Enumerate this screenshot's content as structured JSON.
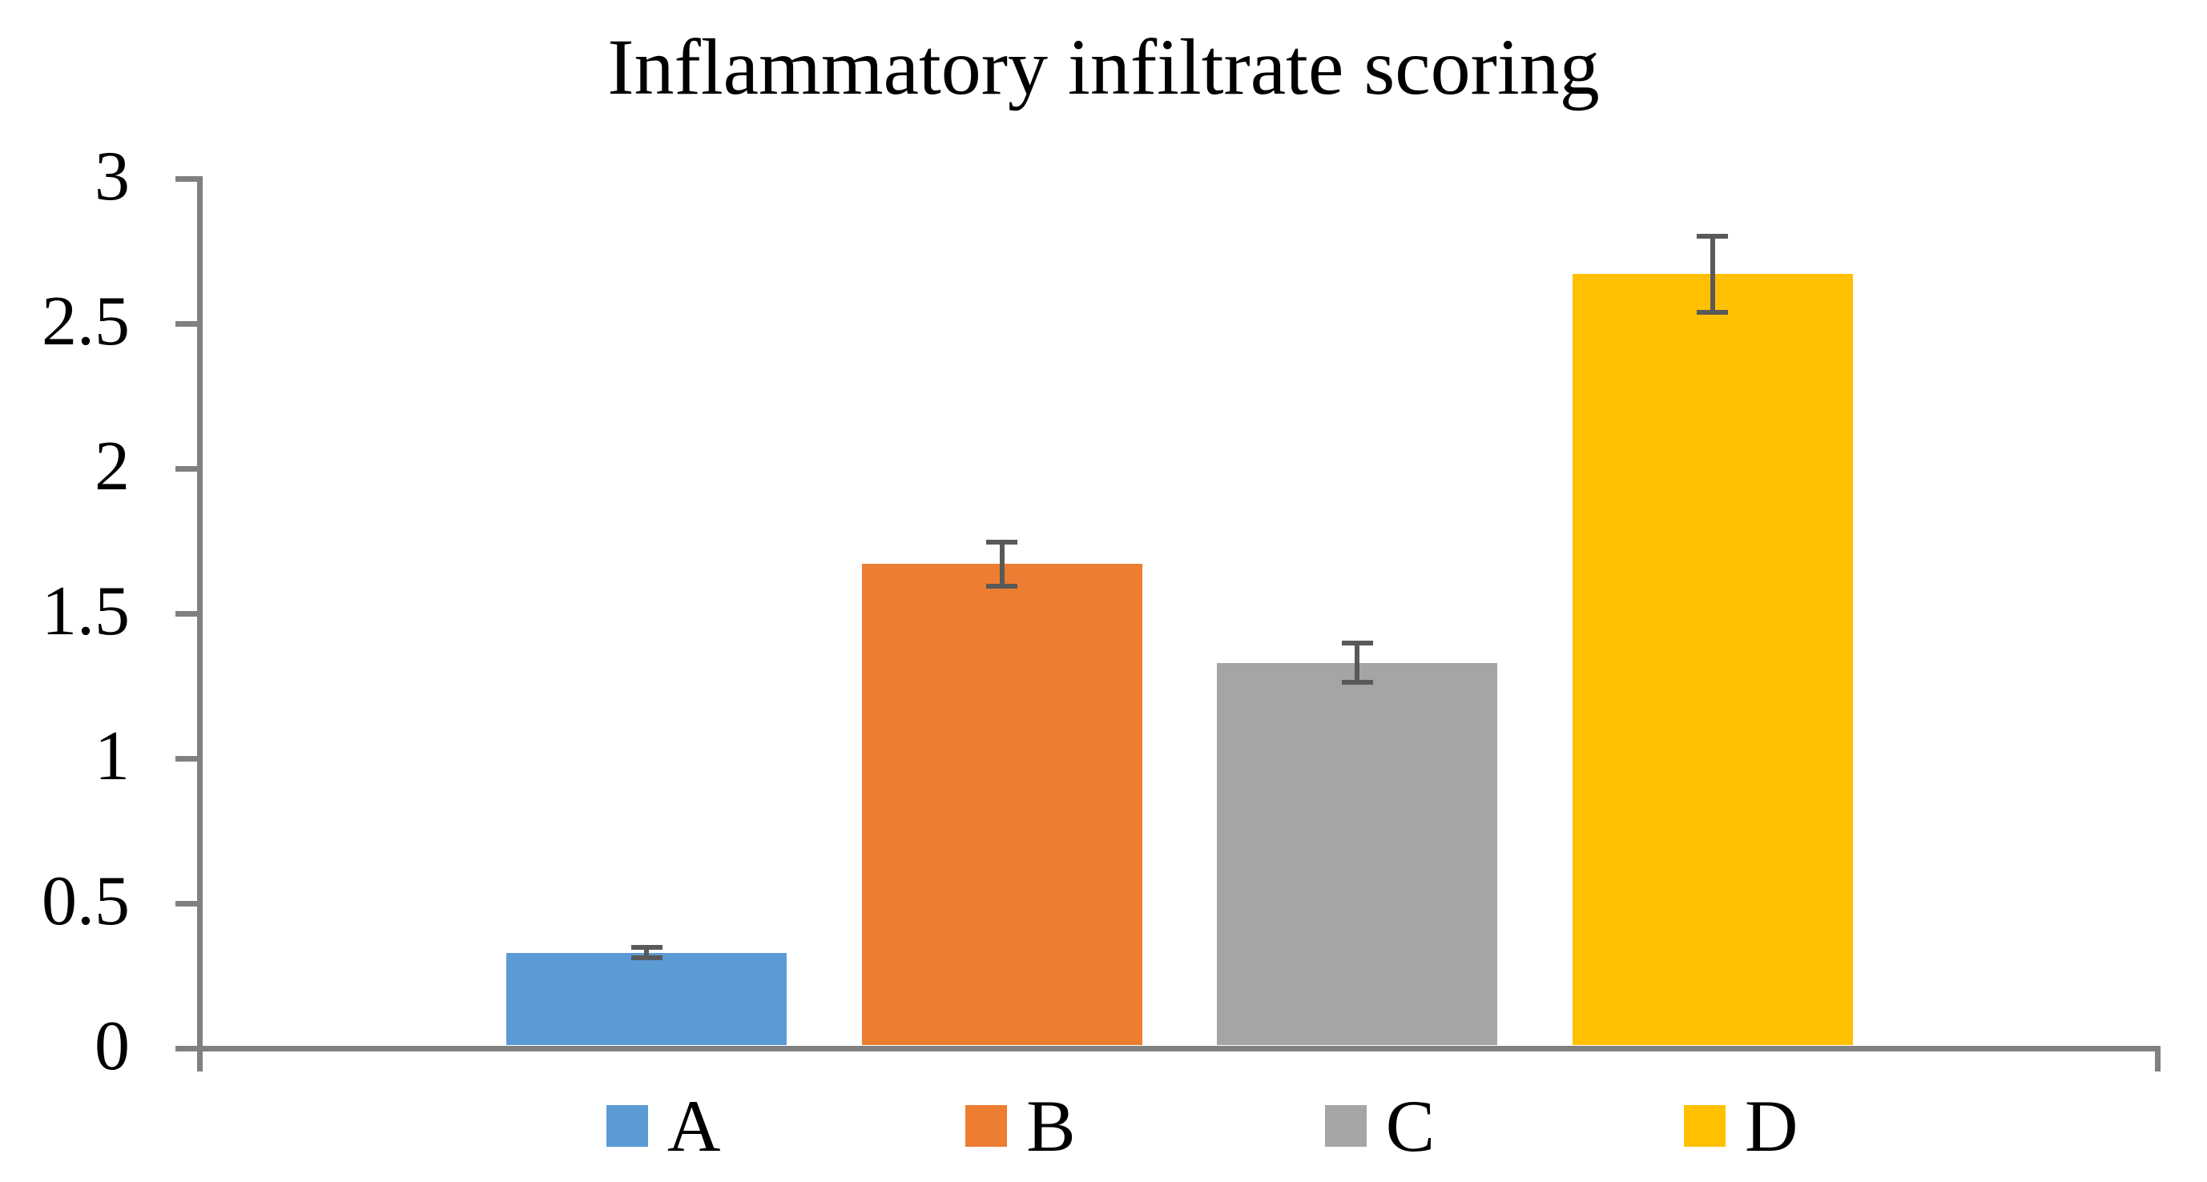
{
  "page": {
    "background": "#FFFFFF"
  },
  "chart_data": {
    "type": "bar",
    "title": "Inflammatory infiltrate scoring",
    "categories": [
      "A",
      "B",
      "C",
      "D"
    ],
    "values": [
      0.33,
      1.67,
      1.33,
      2.67
    ],
    "errors": [
      0.025,
      0.085,
      0.075,
      0.14
    ],
    "bar_colors": [
      "#5B9BD5",
      "#ED7D31",
      "#A5A5A5",
      "#FFC000"
    ],
    "error_bar_color": "#595959",
    "axis_color": "#808080",
    "text_color": "#000000",
    "xlabel": "",
    "ylabel": "",
    "ylim": [
      0,
      3
    ],
    "ytick_step": 0.5,
    "ytick_labels": [
      "0",
      "0.5",
      "1",
      "1.5",
      "2",
      "2.5",
      "3"
    ],
    "grid": false,
    "legend": {
      "position": "bottom",
      "entries": [
        {
          "label": "A",
          "color": "#5B9BD5"
        },
        {
          "label": "B",
          "color": "#ED7D31"
        },
        {
          "label": "C",
          "color": "#A5A5A5"
        },
        {
          "label": "D",
          "color": "#FFC000"
        }
      ]
    }
  }
}
